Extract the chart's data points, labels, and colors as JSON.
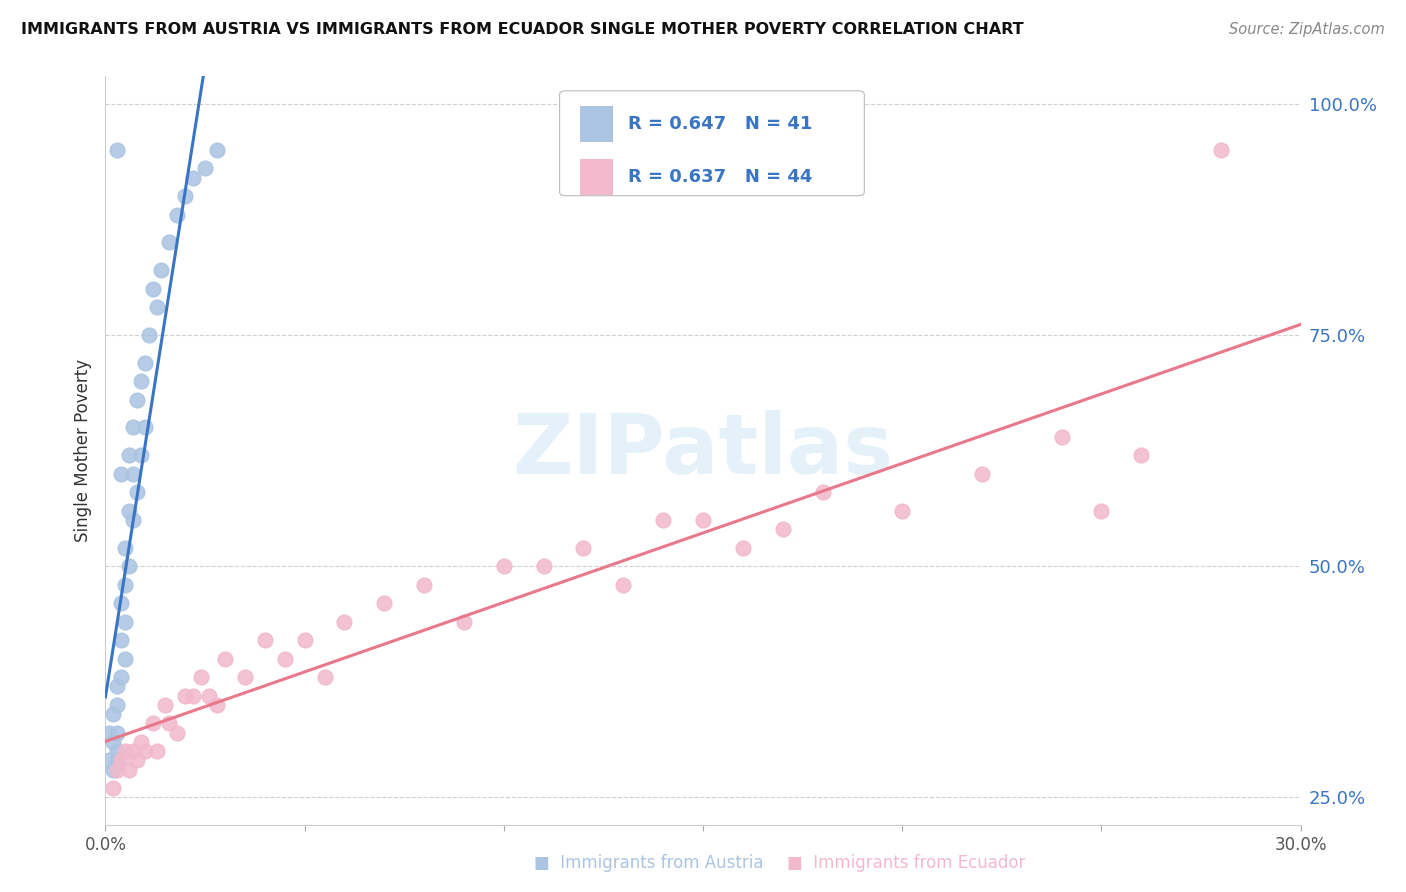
{
  "title": "IMMIGRANTS FROM AUSTRIA VS IMMIGRANTS FROM ECUADOR SINGLE MOTHER POVERTY CORRELATION CHART",
  "source": "Source: ZipAtlas.com",
  "ylabel": "Single Mother Poverty",
  "xlim": [
    0.0,
    0.3
  ],
  "ylim": [
    0.22,
    1.03
  ],
  "ytick_labels": [
    "25.0%",
    "50.0%",
    "75.0%",
    "100.0%"
  ],
  "ytick_values": [
    0.25,
    0.5,
    0.75,
    1.0
  ],
  "xtick_values": [
    0.0,
    0.05,
    0.1,
    0.15,
    0.2,
    0.25,
    0.3
  ],
  "xtick_labels": [
    "0.0%",
    "",
    "",
    "",
    "",
    "",
    "30.0%"
  ],
  "austria_R": 0.647,
  "austria_N": 41,
  "ecuador_R": 0.637,
  "ecuador_N": 44,
  "austria_color": "#aac4e2",
  "ecuador_color": "#f2b8cc",
  "austria_line_color": "#3a75c4",
  "ecuador_line_color": "#e8788a",
  "legend_text_color": "#3a75c4",
  "watermark": "ZIPatlas",
  "austria_x": [
    0.001,
    0.001,
    0.002,
    0.002,
    0.002,
    0.003,
    0.003,
    0.003,
    0.003,
    0.003,
    0.003,
    0.004,
    0.004,
    0.004,
    0.004,
    0.005,
    0.005,
    0.005,
    0.005,
    0.006,
    0.006,
    0.006,
    0.007,
    0.007,
    0.007,
    0.008,
    0.008,
    0.009,
    0.009,
    0.01,
    0.01,
    0.011,
    0.012,
    0.013,
    0.014,
    0.016,
    0.018,
    0.02,
    0.022,
    0.025,
    0.028
  ],
  "austria_y": [
    0.29,
    0.32,
    0.28,
    0.31,
    0.34,
    0.29,
    0.3,
    0.32,
    0.35,
    0.37,
    0.95,
    0.38,
    0.42,
    0.46,
    0.6,
    0.4,
    0.44,
    0.48,
    0.52,
    0.5,
    0.56,
    0.62,
    0.55,
    0.6,
    0.65,
    0.58,
    0.68,
    0.62,
    0.7,
    0.65,
    0.72,
    0.75,
    0.8,
    0.78,
    0.82,
    0.85,
    0.88,
    0.9,
    0.92,
    0.93,
    0.95
  ],
  "ecuador_x": [
    0.002,
    0.003,
    0.004,
    0.005,
    0.006,
    0.007,
    0.008,
    0.009,
    0.01,
    0.012,
    0.013,
    0.015,
    0.016,
    0.018,
    0.02,
    0.022,
    0.024,
    0.026,
    0.028,
    0.03,
    0.035,
    0.04,
    0.045,
    0.05,
    0.055,
    0.06,
    0.07,
    0.08,
    0.09,
    0.1,
    0.11,
    0.12,
    0.13,
    0.14,
    0.15,
    0.16,
    0.17,
    0.18,
    0.2,
    0.22,
    0.24,
    0.25,
    0.26,
    0.28
  ],
  "ecuador_y": [
    0.26,
    0.28,
    0.29,
    0.3,
    0.28,
    0.3,
    0.29,
    0.31,
    0.3,
    0.33,
    0.3,
    0.35,
    0.33,
    0.32,
    0.36,
    0.36,
    0.38,
    0.36,
    0.35,
    0.4,
    0.38,
    0.42,
    0.4,
    0.42,
    0.38,
    0.44,
    0.46,
    0.48,
    0.44,
    0.5,
    0.5,
    0.52,
    0.48,
    0.55,
    0.55,
    0.52,
    0.54,
    0.58,
    0.56,
    0.6,
    0.64,
    0.56,
    0.62,
    0.95
  ]
}
